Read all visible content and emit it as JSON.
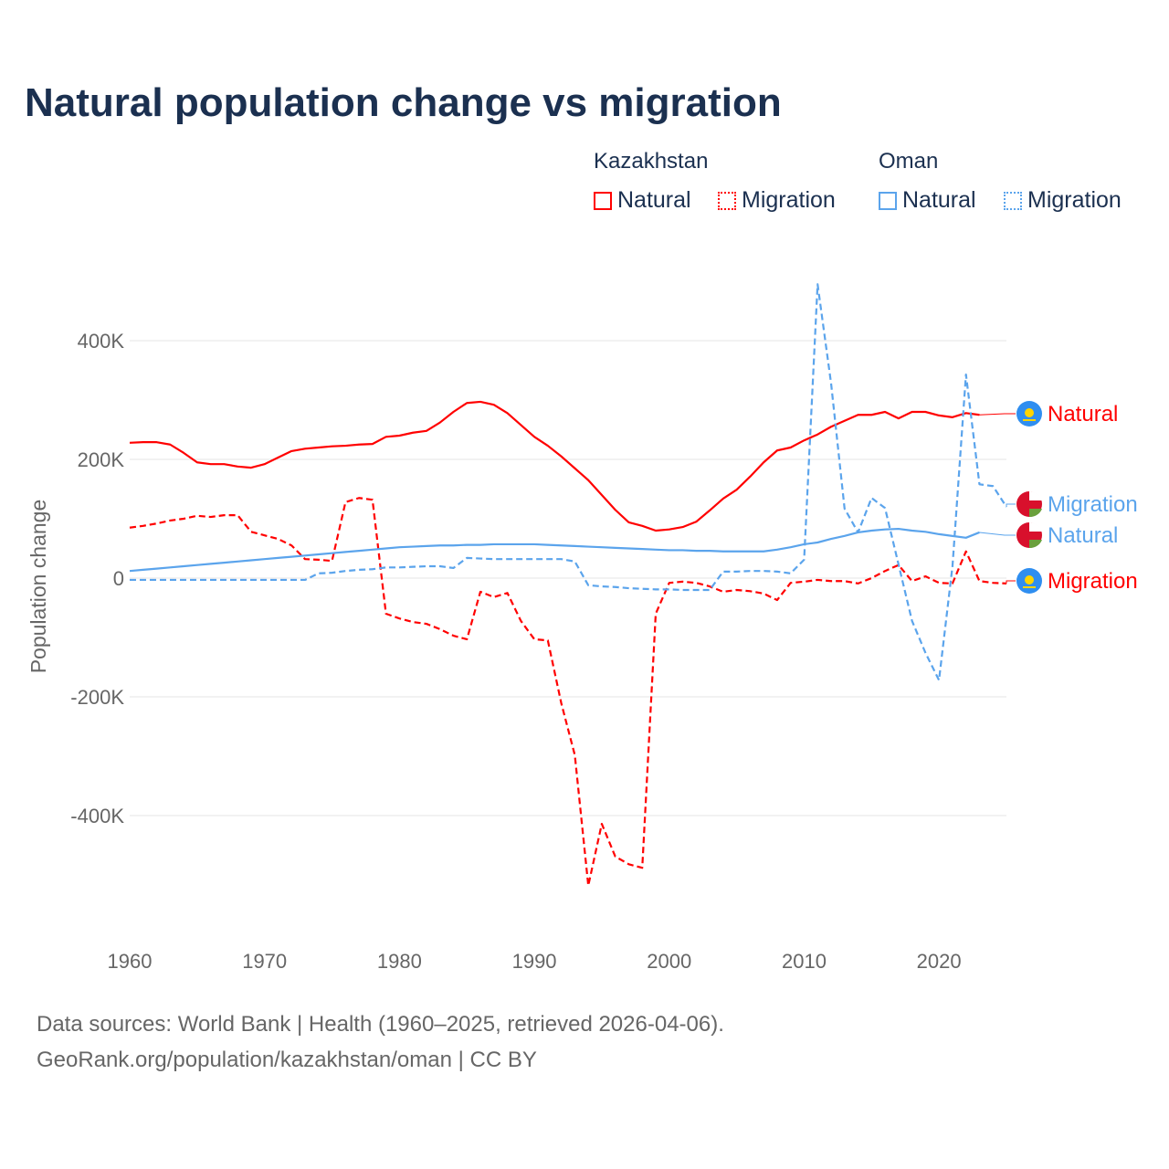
{
  "chart_data": {
    "type": "line",
    "title": "Natural population change vs migration",
    "ylabel": "Population change",
    "xlabel": "",
    "ylim": [
      -560000,
      500000
    ],
    "xlim": [
      1960,
      2025
    ],
    "yticks": [
      {
        "v": 400000,
        "label": "400K"
      },
      {
        "v": 200000,
        "label": "200K"
      },
      {
        "v": 0,
        "label": "0"
      },
      {
        "v": -200000,
        "label": "-200K"
      },
      {
        "v": -400000,
        "label": "-400K"
      }
    ],
    "xticks": [
      1960,
      1970,
      1980,
      1990,
      2000,
      2010,
      2020
    ],
    "grid": true,
    "legend": {
      "placement": "top-right",
      "groups": [
        {
          "name": "Kazakhstan",
          "items": [
            "Natural",
            "Migration"
          ]
        },
        {
          "name": "Oman",
          "items": [
            "Natural",
            "Migration"
          ]
        }
      ]
    },
    "series": [
      {
        "name": "Kazakhstan Natural",
        "label": "Natural",
        "country": "Kazakhstan",
        "color": "#ff0000",
        "dash": false,
        "start": 1960,
        "values": [
          228,
          229,
          229,
          225,
          211,
          195,
          192,
          192,
          188,
          186,
          192,
          203,
          214,
          218,
          220,
          222,
          223,
          225,
          226,
          238,
          240,
          245,
          248,
          262,
          280,
          295,
          297,
          292,
          278,
          258,
          238,
          223,
          205,
          185,
          165,
          140,
          115,
          94,
          88,
          80,
          82,
          86,
          95,
          114,
          134,
          149,
          171,
          195,
          215,
          220,
          232,
          242,
          255,
          265,
          275,
          275,
          280,
          269,
          280,
          280,
          274,
          271,
          278,
          275
        ]
      },
      {
        "name": "Kazakhstan Migration",
        "label": "Migration",
        "country": "Kazakhstan",
        "color": "#ff0000",
        "dash": true,
        "start": 1960,
        "values": [
          85,
          88,
          92,
          97,
          100,
          105,
          103,
          106,
          106,
          78,
          72,
          66,
          55,
          32,
          31,
          29,
          128,
          135,
          132,
          -60,
          -68,
          -74,
          -77,
          -86,
          -97,
          -103,
          -23,
          -32,
          -25,
          -72,
          -103,
          -105,
          -211,
          -298,
          -518,
          -414,
          -469,
          -482,
          -488,
          -60,
          -8,
          -6,
          -8,
          -14,
          -23,
          -20,
          -22,
          -26,
          -37,
          -8,
          -6,
          -3,
          -5,
          -5,
          -9,
          0,
          12,
          22,
          -5,
          3,
          -8,
          -9,
          45,
          -5,
          -8,
          -9
        ]
      },
      {
        "name": "Oman Natural",
        "label": "Natural",
        "country": "Oman",
        "color": "#5ba4ec",
        "dash": false,
        "start": 1960,
        "values": [
          12,
          14,
          16,
          18,
          20,
          22,
          24,
          26,
          28,
          30,
          32,
          34,
          36,
          38,
          40,
          42,
          44,
          46,
          48,
          50,
          52,
          53,
          54,
          55,
          55,
          56,
          56,
          57,
          57,
          57,
          57,
          56,
          55,
          54,
          53,
          52,
          51,
          50,
          49,
          48,
          47,
          47,
          46,
          46,
          45,
          45,
          45,
          45,
          48,
          52,
          57,
          60,
          66,
          71,
          77,
          80,
          82,
          83,
          80,
          78,
          74,
          71,
          68,
          77
        ]
      },
      {
        "name": "Oman Migration",
        "label": "Migration",
        "country": "Oman",
        "color": "#5ba4ec",
        "dash": true,
        "start": 1960,
        "values": [
          -3,
          -3,
          -3,
          -3,
          -3,
          -3,
          -3,
          -3,
          -3,
          -3,
          -3,
          -3,
          -3,
          -3,
          8,
          9,
          12,
          14,
          15,
          18,
          18,
          19,
          20,
          20,
          17,
          34,
          33,
          32,
          32,
          32,
          32,
          32,
          32,
          28,
          -12,
          -14,
          -15,
          -17,
          -18,
          -19,
          -19,
          -20,
          -20,
          -20,
          11,
          11,
          12,
          12,
          11,
          8,
          31,
          495,
          328,
          117,
          77,
          135,
          118,
          23,
          -72,
          -126,
          -172,
          20,
          343,
          158,
          155,
          120
        ]
      }
    ]
  },
  "footer": {
    "line1": "Data sources: World Bank | Health (1960–2025, retrieved 2026-04-06).",
    "line2": "GeoRank.org/population/kazakhstan/oman | CC BY"
  }
}
